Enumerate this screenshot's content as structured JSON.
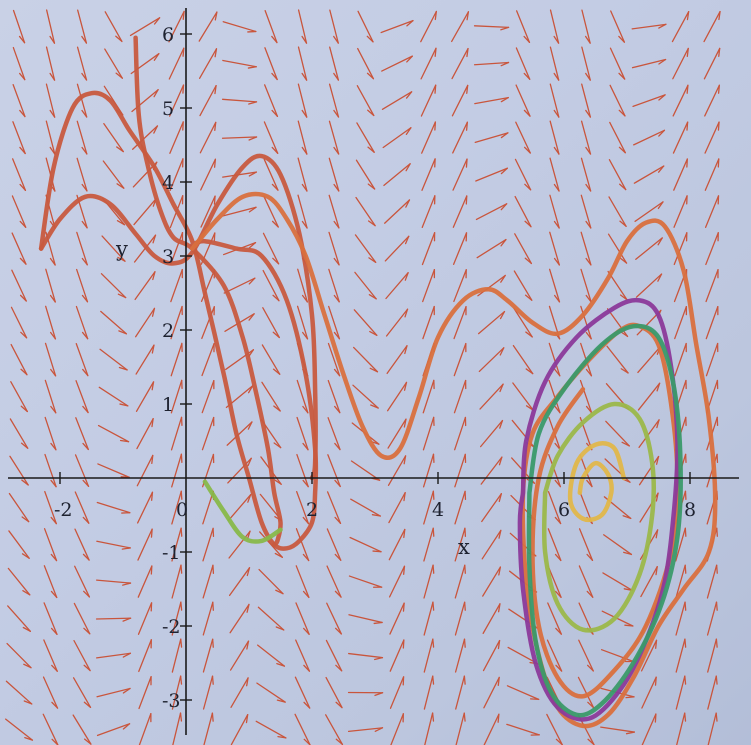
{
  "chart_data": {
    "type": "vector-field-phase-portrait",
    "xlabel": "x",
    "ylabel": "y",
    "xlim": [
      -2.8,
      8.8
    ],
    "ylim": [
      -3.5,
      6.2
    ],
    "x_ticks": [
      {
        "value": -2,
        "label": "-2"
      },
      {
        "value": 0,
        "label": "0"
      },
      {
        "value": 2,
        "label": "2"
      },
      {
        "value": 4,
        "label": "4"
      },
      {
        "value": 6,
        "label": "6"
      },
      {
        "value": 8,
        "label": "8"
      }
    ],
    "y_ticks": [
      {
        "value": -3,
        "label": "-3"
      },
      {
        "value": -2,
        "label": "-2"
      },
      {
        "value": -1,
        "label": "-1"
      },
      {
        "value": 1,
        "label": "1"
      },
      {
        "value": 2,
        "label": "2"
      },
      {
        "value": 3,
        "label": "3"
      },
      {
        "value": 4,
        "label": "4"
      },
      {
        "value": 5,
        "label": "5"
      },
      {
        "value": 6,
        "label": "6"
      }
    ],
    "grid": false,
    "field": {
      "x_step": 0.5,
      "y_step": 0.5,
      "arrow_color": "#c9553c"
    },
    "trajectories": [
      {
        "color": "#c85a3f",
        "points": [
          [
            -2.3,
            3.1
          ],
          [
            -2.1,
            4.2
          ],
          [
            -1.8,
            5.0
          ],
          [
            -1.5,
            5.2
          ],
          [
            -1.2,
            5.1
          ],
          [
            -0.9,
            4.7
          ],
          [
            -0.5,
            4.2
          ],
          [
            -0.2,
            3.7
          ],
          [
            0.1,
            3.2
          ],
          [
            0.3,
            2.5
          ],
          [
            0.6,
            1.4
          ],
          [
            0.8,
            0.6
          ],
          [
            1.0,
            0.0
          ],
          [
            1.2,
            -0.6
          ],
          [
            1.4,
            -0.9
          ],
          [
            1.6,
            -0.95
          ],
          [
            1.8,
            -0.85
          ],
          [
            2.0,
            -0.6
          ],
          [
            2.05,
            -0.2
          ],
          [
            2.05,
            0.4
          ],
          [
            1.9,
            1.4
          ],
          [
            1.6,
            2.4
          ],
          [
            1.2,
            3.0
          ],
          [
            0.8,
            3.1
          ],
          [
            0.3,
            3.2
          ],
          [
            0.1,
            3.15
          ]
        ]
      },
      {
        "color": "#c85a3f",
        "points": [
          [
            -2.3,
            3.1
          ],
          [
            -2.0,
            3.5
          ],
          [
            -1.6,
            3.8
          ],
          [
            -1.2,
            3.7
          ],
          [
            -0.8,
            3.3
          ],
          [
            -0.5,
            3.0
          ],
          [
            -0.2,
            2.9
          ],
          [
            0.1,
            3.05
          ],
          [
            0.5,
            3.7
          ],
          [
            0.9,
            4.2
          ],
          [
            1.2,
            4.35
          ],
          [
            1.5,
            4.1
          ],
          [
            1.8,
            3.3
          ],
          [
            2.0,
            2.2
          ],
          [
            2.05,
            1.2
          ],
          [
            2.05,
            0.2
          ],
          [
            2.0,
            0.0
          ]
        ]
      },
      {
        "color": "#c85a3f",
        "points": [
          [
            -0.8,
            5.95
          ],
          [
            -0.75,
            4.9
          ],
          [
            -0.6,
            4.2
          ],
          [
            -0.4,
            3.6
          ],
          [
            -0.2,
            3.25
          ],
          [
            0.1,
            3.1
          ],
          [
            0.6,
            2.6
          ],
          [
            0.9,
            1.9
          ],
          [
            1.1,
            1.2
          ],
          [
            1.3,
            0.4
          ],
          [
            1.4,
            -0.2
          ],
          [
            1.5,
            -0.6
          ],
          [
            1.45,
            -0.85
          ],
          [
            1.4,
            -0.9
          ]
        ]
      },
      {
        "color": "#d9703e",
        "points": [
          [
            0.1,
            3.1
          ],
          [
            0.5,
            3.5
          ],
          [
            0.9,
            3.8
          ],
          [
            1.3,
            3.8
          ],
          [
            1.6,
            3.5
          ],
          [
            1.9,
            3.0
          ],
          [
            2.2,
            2.2
          ],
          [
            2.5,
            1.4
          ],
          [
            2.8,
            0.7
          ],
          [
            3.1,
            0.3
          ],
          [
            3.4,
            0.4
          ],
          [
            3.7,
            1.1
          ],
          [
            4.0,
            1.9
          ],
          [
            4.4,
            2.4
          ],
          [
            4.8,
            2.55
          ],
          [
            5.1,
            2.4
          ],
          [
            5.5,
            2.1
          ],
          [
            5.9,
            1.95
          ],
          [
            6.3,
            2.2
          ],
          [
            6.7,
            2.7
          ],
          [
            7.0,
            3.2
          ],
          [
            7.3,
            3.45
          ],
          [
            7.6,
            3.4
          ],
          [
            7.9,
            2.8
          ],
          [
            8.1,
            1.8
          ],
          [
            8.3,
            0.8
          ],
          [
            8.4,
            -0.3
          ],
          [
            8.3,
            -1.0
          ],
          [
            7.9,
            -1.5
          ],
          [
            7.5,
            -2.0
          ],
          [
            7.1,
            -2.7
          ],
          [
            6.7,
            -3.2
          ],
          [
            6.3,
            -3.35
          ],
          [
            5.9,
            -3.1
          ],
          [
            5.6,
            -2.4
          ],
          [
            5.4,
            -1.4
          ],
          [
            5.35,
            -0.2
          ],
          [
            5.5,
            0.6
          ],
          [
            5.9,
            1.1
          ],
          [
            6.4,
            1.6
          ],
          [
            6.9,
            2.0
          ],
          [
            7.2,
            2.05
          ],
          [
            7.5,
            1.8
          ],
          [
            7.7,
            1.0
          ],
          [
            7.8,
            0.0
          ],
          [
            7.7,
            -1.0
          ],
          [
            7.3,
            -2.0
          ],
          [
            6.8,
            -2.6
          ],
          [
            6.3,
            -2.95
          ],
          [
            5.9,
            -2.7
          ],
          [
            5.6,
            -2.0
          ],
          [
            5.5,
            -1.0
          ],
          [
            5.6,
            0.0
          ],
          [
            5.9,
            0.7
          ],
          [
            6.3,
            1.2
          ]
        ]
      },
      {
        "color": "#88b84a",
        "points": [
          [
            0.3,
            -0.05
          ],
          [
            0.6,
            -0.45
          ],
          [
            0.9,
            -0.8
          ],
          [
            1.2,
            -0.85
          ],
          [
            1.5,
            -0.7
          ]
        ]
      },
      {
        "color": "#9bb84a",
        "points": [
          [
            5.7,
            -0.2
          ],
          [
            5.9,
            0.3
          ],
          [
            6.3,
            0.75
          ],
          [
            6.8,
            1.0
          ],
          [
            7.2,
            0.8
          ],
          [
            7.4,
            0.2
          ],
          [
            7.4,
            -0.5
          ],
          [
            7.2,
            -1.3
          ],
          [
            6.8,
            -1.9
          ],
          [
            6.3,
            -2.05
          ],
          [
            5.9,
            -1.7
          ],
          [
            5.7,
            -1.0
          ],
          [
            5.7,
            -0.2
          ]
        ]
      },
      {
        "color": "#e0b74a",
        "points": [
          [
            6.25,
            -0.2
          ],
          [
            6.3,
            0.0
          ],
          [
            6.5,
            0.2
          ],
          [
            6.7,
            0.05
          ],
          [
            6.75,
            -0.2
          ],
          [
            6.6,
            -0.5
          ],
          [
            6.3,
            -0.55
          ],
          [
            6.1,
            -0.3
          ],
          [
            6.2,
            0.2
          ],
          [
            6.5,
            0.45
          ],
          [
            6.8,
            0.4
          ],
          [
            6.95,
            0.0
          ]
        ]
      },
      {
        "color": "#8b3a9a",
        "points": [
          [
            5.35,
            -0.2
          ],
          [
            5.4,
            0.5
          ],
          [
            5.7,
            1.3
          ],
          [
            6.2,
            1.9
          ],
          [
            6.8,
            2.3
          ],
          [
            7.2,
            2.4
          ],
          [
            7.5,
            2.2
          ],
          [
            7.7,
            1.5
          ],
          [
            7.8,
            0.5
          ],
          [
            7.75,
            -0.4
          ],
          [
            7.6,
            -1.4
          ],
          [
            7.3,
            -2.2
          ],
          [
            6.9,
            -2.85
          ],
          [
            6.4,
            -3.25
          ],
          [
            5.9,
            -3.1
          ],
          [
            5.55,
            -2.5
          ],
          [
            5.35,
            -1.5
          ],
          [
            5.3,
            -0.6
          ],
          [
            5.35,
            -0.2
          ]
        ]
      },
      {
        "color": "#3a9a6a",
        "points": [
          [
            5.45,
            -0.2
          ],
          [
            5.6,
            0.6
          ],
          [
            6.0,
            1.2
          ],
          [
            6.6,
            1.8
          ],
          [
            7.1,
            2.05
          ],
          [
            7.5,
            1.9
          ],
          [
            7.75,
            1.2
          ],
          [
            7.85,
            0.2
          ],
          [
            7.8,
            -0.8
          ],
          [
            7.55,
            -1.7
          ],
          [
            7.1,
            -2.5
          ],
          [
            6.6,
            -3.05
          ],
          [
            6.2,
            -3.2
          ],
          [
            5.8,
            -2.9
          ],
          [
            5.55,
            -2.2
          ],
          [
            5.45,
            -1.2
          ],
          [
            5.45,
            -0.2
          ]
        ]
      }
    ]
  }
}
